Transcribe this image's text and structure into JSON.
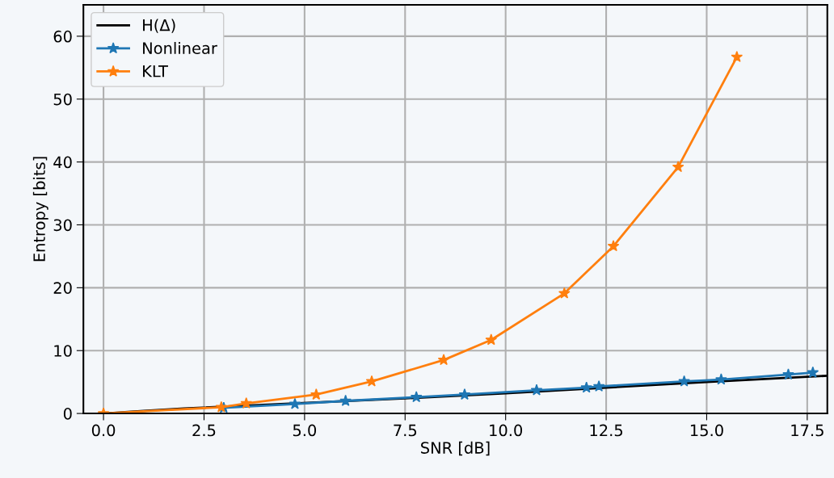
{
  "chart_data": {
    "type": "line",
    "xlabel": "SNR [dB]",
    "ylabel": "Entropy [bits]",
    "xlim": [
      -0.5,
      18.0
    ],
    "ylim": [
      0,
      65
    ],
    "xticks": [
      {
        "value": 0,
        "label": "0.0"
      },
      {
        "value": 2.5,
        "label": "2.5"
      },
      {
        "value": 5,
        "label": "5.0"
      },
      {
        "value": 7.5,
        "label": "7.5"
      },
      {
        "value": 10,
        "label": "10.0"
      },
      {
        "value": 12.5,
        "label": "12.5"
      },
      {
        "value": 15,
        "label": "15.0"
      },
      {
        "value": 17.5,
        "label": "17.5"
      }
    ],
    "yticks": [
      0,
      10,
      20,
      30,
      40,
      50,
      60
    ],
    "grid": true,
    "legend": "top left",
    "series": [
      {
        "name": "H(Δ)",
        "color": "#000000",
        "marker": "none",
        "x": [
          0,
          1,
          2,
          7.5,
          10,
          12.5,
          15,
          18
        ],
        "values": [
          0,
          0.4,
          0.8,
          2.4,
          3.2,
          4.1,
          5.0,
          6.0
        ]
      },
      {
        "name": "Nonlinear",
        "color": "#1f77b4",
        "marker": "star",
        "x": [
          2.99,
          4.76,
          6.02,
          7.78,
          8.98,
          10.77,
          12.01,
          12.32,
          14.44,
          15.36,
          17.03,
          17.64
        ],
        "values": [
          0.9,
          1.5,
          2.0,
          2.6,
          3.0,
          3.7,
          4.1,
          4.3,
          5.1,
          5.4,
          6.2,
          6.5
        ]
      },
      {
        "name": "KLT",
        "color": "#ff7f0e",
        "marker": "star",
        "x": [
          0,
          2.93,
          3.55,
          5.29,
          6.67,
          8.46,
          9.64,
          11.46,
          12.68,
          14.29,
          15.75
        ],
        "values": [
          0,
          1.0,
          1.6,
          3.0,
          5.1,
          8.5,
          11.7,
          19.1,
          26.6,
          39.2,
          56.7
        ]
      }
    ]
  }
}
